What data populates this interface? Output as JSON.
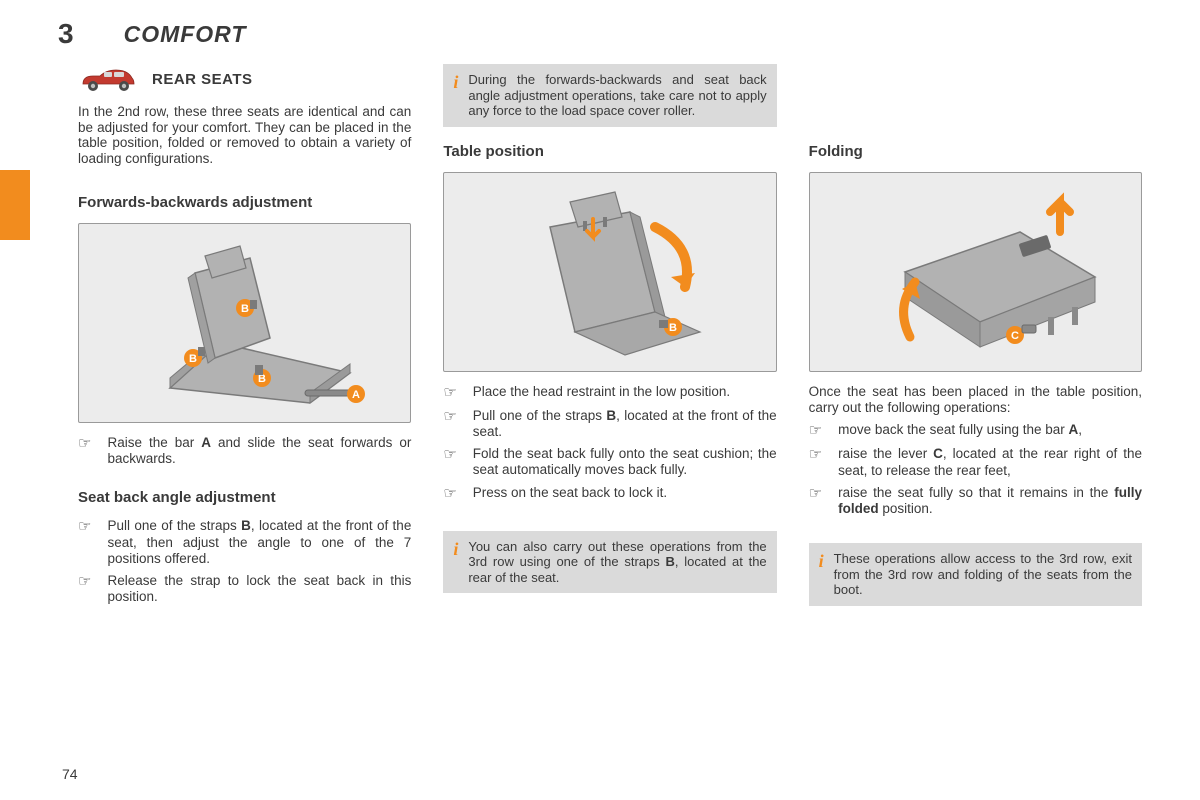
{
  "chapter_num": "3",
  "chapter_title": "COMFORT",
  "page_num": "74",
  "accent_color": "#f28c1e",
  "section_title": "REAR SEATS",
  "col1": {
    "intro": "In the 2nd row, these three seats are identical and can be adjusted for your comfort. They can be placed in the table position, folded or removed to obtain a variety of loading configurations.",
    "sub1_title": "Forwards-backwards adjustment",
    "sub1_bullets": [
      "Raise the bar <b>A</b> and slide the seat forwards or backwards."
    ],
    "sub2_title": "Seat back angle adjustment",
    "sub2_bullets": [
      "Pull one of the straps <b>B</b>, located at the front of the seat, then adjust the angle to one of the 7 positions offered.",
      "Release the strap to lock the seat back in this position."
    ]
  },
  "col2": {
    "info1": "During the forwards-backwards and seat back angle adjustment operations, take care not to apply any force to the load space cover roller.",
    "sub_title": "Table position",
    "bullets": [
      "Place the head restraint in the low position.",
      "Pull one of the straps <b>B</b>, located at the front of the seat.",
      "Fold the seat back fully onto the seat cushion; the seat automatically moves back fully.",
      "Press on the seat back to lock it."
    ],
    "info2": "You can also carry out these operations from the 3rd row using one of the straps <b>B</b>, located at the rear of the seat."
  },
  "col3": {
    "sub_title": "Folding",
    "para": "Once the seat has been placed in the table position, carry out the following operations:",
    "bullets": [
      "move back the seat fully using the bar <b>A</b>,",
      "raise the lever <b>C</b>, located at the rear right of the seat, to release the rear feet,",
      "raise the seat fully so that it remains in the <b>fully folded</b> position."
    ],
    "info": "These operations allow access to the 3rd row, exit from the 3rd row and folding of the seats from the boot."
  },
  "diagrams": {
    "seat_labels": [
      "A",
      "B",
      "C"
    ],
    "label_bg": "#f28c1e",
    "label_fg": "#ffffff",
    "arrow_color": "#f28c1e",
    "seat_fill": "#b2b2b2",
    "seat_stroke": "#7a7a7a"
  }
}
